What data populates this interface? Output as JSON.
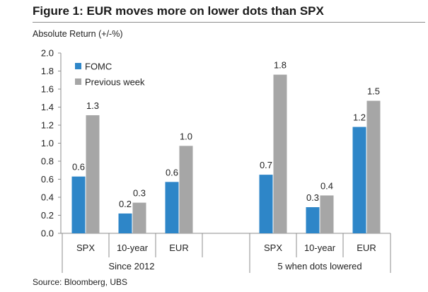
{
  "chart_data": {
    "type": "bar",
    "title": "Figure 1: EUR moves more on lower dots than SPX",
    "ylabel": "Absolute Return (+/-%)",
    "xlabel": "",
    "ylim": [
      0,
      2.0
    ],
    "yticks": [
      "0.0",
      "0.2",
      "0.4",
      "0.6",
      "0.8",
      "1.0",
      "1.2",
      "1.4",
      "1.6",
      "1.8",
      "2.0"
    ],
    "grid": false,
    "legend_position": "top-left",
    "groups": [
      {
        "label": "Since 2012",
        "categories": [
          "SPX",
          "10-year",
          "EUR"
        ]
      },
      {
        "label": "5 when dots lowered",
        "categories": [
          "SPX",
          "10-year",
          "EUR"
        ]
      }
    ],
    "categories": [
      "SPX",
      "10-year",
      "EUR",
      "SPX",
      "10-year",
      "EUR"
    ],
    "series": [
      {
        "name": "FOMC",
        "color": "#2e86c8",
        "values": [
          0.63,
          0.22,
          0.57,
          0.65,
          0.29,
          1.18
        ],
        "labels": [
          "0.6",
          "0.2",
          "0.6",
          "0.7",
          "0.3",
          "1.2"
        ]
      },
      {
        "name": "Previous week",
        "color": "#a6a6a6",
        "values": [
          1.31,
          0.34,
          0.97,
          1.76,
          0.42,
          1.47
        ],
        "labels": [
          "1.3",
          "0.3",
          "1.0",
          "1.8",
          "0.4",
          "1.5"
        ]
      }
    ],
    "source": "Source: Bloomberg, UBS"
  }
}
